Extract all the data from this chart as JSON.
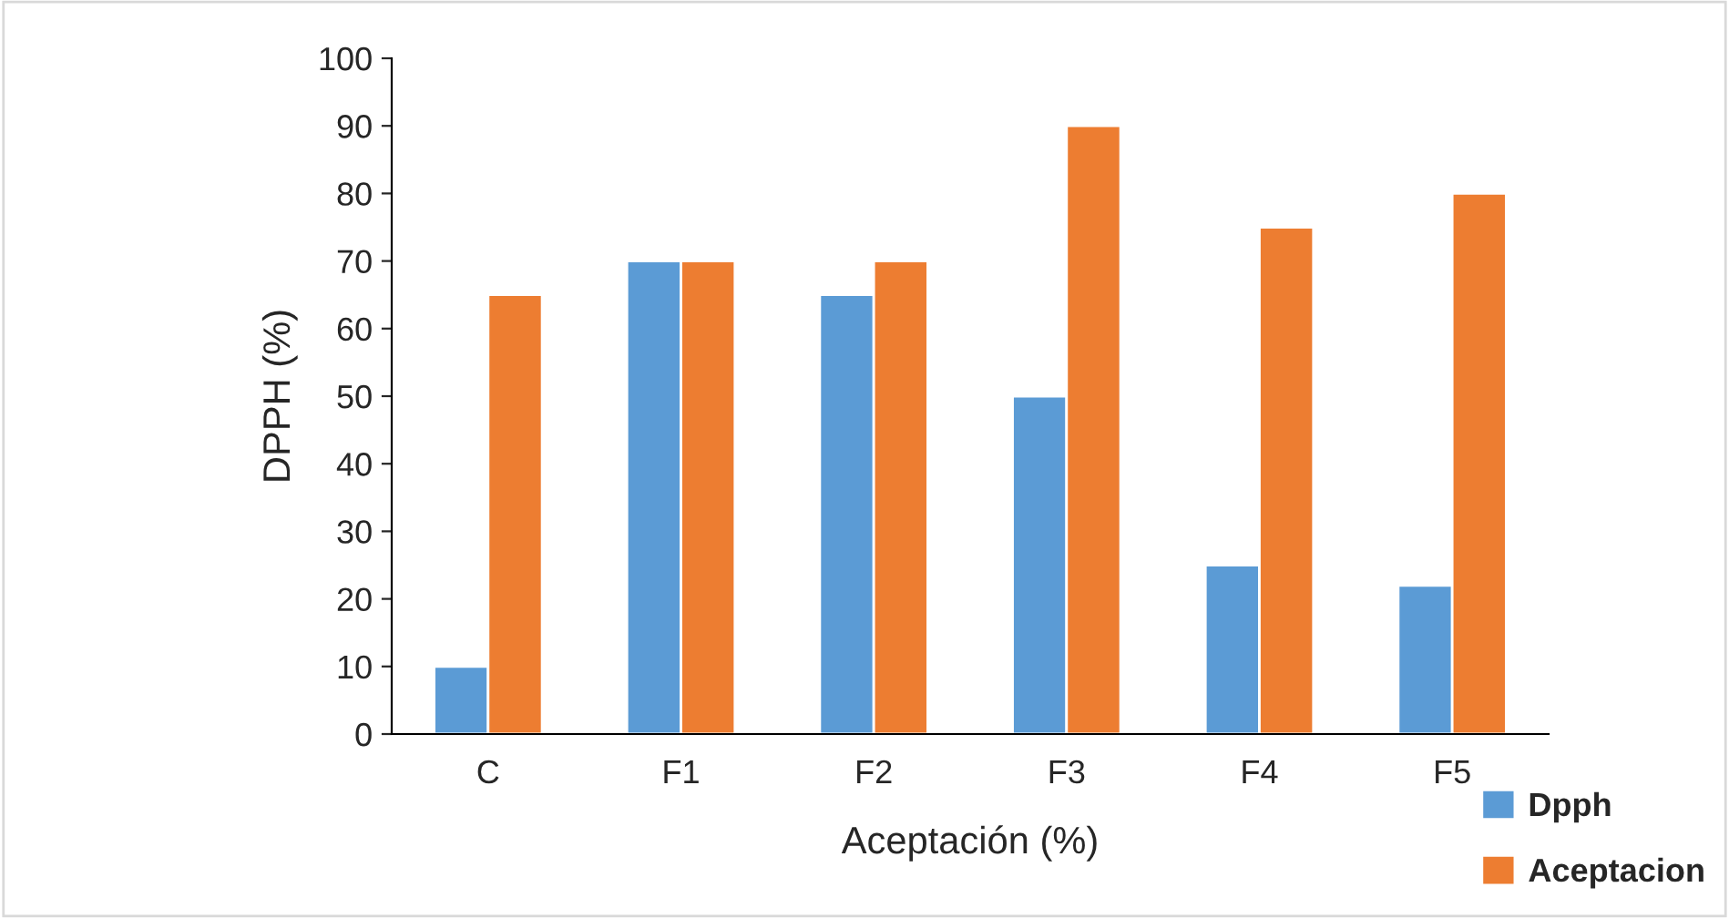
{
  "chart_data": {
    "type": "bar",
    "xlabel": "Aceptación (%)",
    "ylabel": "DPPH (%)",
    "categories": [
      "C",
      "F1",
      "F2",
      "F3",
      "F4",
      "F5"
    ],
    "series": [
      {
        "name": "Dpph",
        "color": "#5b9bd5",
        "values": [
          10,
          70,
          65,
          50,
          25,
          22
        ]
      },
      {
        "name": "Aceptacion",
        "color": "#ed7d31",
        "values": [
          65,
          70,
          70,
          90,
          75,
          80
        ]
      }
    ],
    "ylim": [
      0,
      100
    ],
    "yticks": [
      0,
      10,
      20,
      30,
      40,
      50,
      60,
      70,
      80,
      90,
      100
    ],
    "grid": false,
    "legend": "bottom right"
  }
}
